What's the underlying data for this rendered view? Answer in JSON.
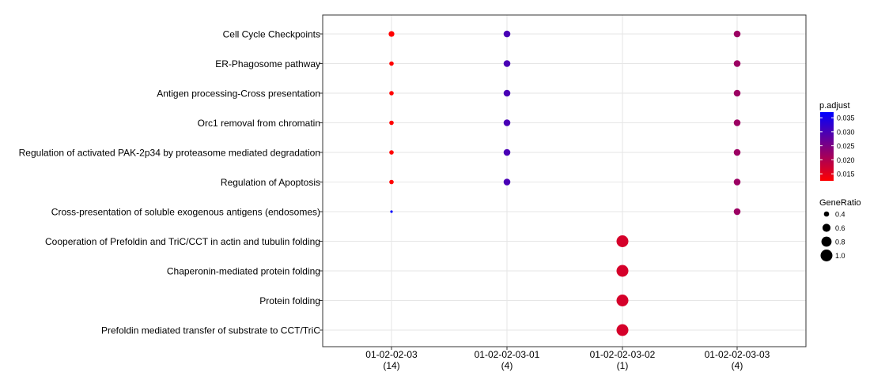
{
  "chart_data": {
    "type": "scatter",
    "title": "",
    "xlabel": "",
    "ylabel": "",
    "grid": true,
    "legend_position": "right",
    "x_categories": [
      [
        "01-02-02-03",
        "(14)"
      ],
      [
        "01-02-02-03-01",
        "(4)"
      ],
      [
        "01-02-02-03-02",
        "(1)"
      ],
      [
        "01-02-02-03-03",
        "(4)"
      ]
    ],
    "y_categories": [
      "Cell Cycle Checkpoints",
      "ER-Phagosome pathway",
      "Antigen processing-Cross presentation",
      "Orc1 removal from chromatin",
      "Regulation of activated PAK-2p34 by proteasome mediated degradation",
      "Regulation of Apoptosis",
      "Cross-presentation of soluble exogenous antigens (endosomes)",
      "Cooperation of Prefoldin and TriC/CCT  in actin and tubulin folding",
      "Chaperonin-mediated protein folding",
      "Protein folding",
      "Prefoldin mediated transfer of substrate  to CCT/TriC"
    ],
    "points": [
      {
        "x": "01-02-02-03",
        "y": "Cell Cycle Checkpoints",
        "gene_ratio": 0.43,
        "p_adjust": 0.0125
      },
      {
        "x": "01-02-02-03",
        "y": "ER-Phagosome pathway",
        "gene_ratio": 0.36,
        "p_adjust": 0.0125
      },
      {
        "x": "01-02-02-03",
        "y": "Antigen processing-Cross presentation",
        "gene_ratio": 0.36,
        "p_adjust": 0.0125
      },
      {
        "x": "01-02-02-03",
        "y": "Orc1 removal from chromatin",
        "gene_ratio": 0.36,
        "p_adjust": 0.0125
      },
      {
        "x": "01-02-02-03",
        "y": "Regulation of activated PAK-2p34 by proteasome mediated degradation",
        "gene_ratio": 0.36,
        "p_adjust": 0.0125
      },
      {
        "x": "01-02-02-03",
        "y": "Regulation of Apoptosis",
        "gene_ratio": 0.36,
        "p_adjust": 0.0125
      },
      {
        "x": "01-02-02-03",
        "y": "Cross-presentation of soluble exogenous antigens (endosomes)",
        "gene_ratio": 0.29,
        "p_adjust": 0.037
      },
      {
        "x": "01-02-02-03-01",
        "y": "Cell Cycle Checkpoints",
        "gene_ratio": 0.5,
        "p_adjust": 0.03
      },
      {
        "x": "01-02-02-03-01",
        "y": "ER-Phagosome pathway",
        "gene_ratio": 0.5,
        "p_adjust": 0.03
      },
      {
        "x": "01-02-02-03-01",
        "y": "Antigen processing-Cross presentation",
        "gene_ratio": 0.5,
        "p_adjust": 0.03
      },
      {
        "x": "01-02-02-03-01",
        "y": "Orc1 removal from chromatin",
        "gene_ratio": 0.5,
        "p_adjust": 0.03
      },
      {
        "x": "01-02-02-03-01",
        "y": "Regulation of activated PAK-2p34 by proteasome mediated degradation",
        "gene_ratio": 0.5,
        "p_adjust": 0.03
      },
      {
        "x": "01-02-02-03-01",
        "y": "Regulation of Apoptosis",
        "gene_ratio": 0.5,
        "p_adjust": 0.03
      },
      {
        "x": "01-02-02-03-02",
        "y": "Cooperation of Prefoldin and TriC/CCT  in actin and tubulin folding",
        "gene_ratio": 1.0,
        "p_adjust": 0.0165
      },
      {
        "x": "01-02-02-03-02",
        "y": "Chaperonin-mediated protein folding",
        "gene_ratio": 1.0,
        "p_adjust": 0.0165
      },
      {
        "x": "01-02-02-03-02",
        "y": "Protein folding",
        "gene_ratio": 1.0,
        "p_adjust": 0.0165
      },
      {
        "x": "01-02-02-03-02",
        "y": "Prefoldin mediated transfer of substrate  to CCT/TriC",
        "gene_ratio": 1.0,
        "p_adjust": 0.0165
      },
      {
        "x": "01-02-02-03-03",
        "y": "Cell Cycle Checkpoints",
        "gene_ratio": 0.5,
        "p_adjust": 0.022
      },
      {
        "x": "01-02-02-03-03",
        "y": "ER-Phagosome pathway",
        "gene_ratio": 0.5,
        "p_adjust": 0.022
      },
      {
        "x": "01-02-02-03-03",
        "y": "Antigen processing-Cross presentation",
        "gene_ratio": 0.5,
        "p_adjust": 0.022
      },
      {
        "x": "01-02-02-03-03",
        "y": "Orc1 removal from chromatin",
        "gene_ratio": 0.5,
        "p_adjust": 0.022
      },
      {
        "x": "01-02-02-03-03",
        "y": "Regulation of activated PAK-2p34 by proteasome mediated degradation",
        "gene_ratio": 0.5,
        "p_adjust": 0.022
      },
      {
        "x": "01-02-02-03-03",
        "y": "Regulation of Apoptosis",
        "gene_ratio": 0.5,
        "p_adjust": 0.022
      },
      {
        "x": "01-02-02-03-03",
        "y": "Cross-presentation of soluble exogenous antigens (endosomes)",
        "gene_ratio": 0.5,
        "p_adjust": 0.022
      }
    ],
    "color_legend": {
      "title": "p.adjust",
      "range": [
        0.0125,
        0.037
      ],
      "ticks": [
        0.015,
        0.02,
        0.025,
        0.03,
        0.035
      ],
      "tick_labels": [
        "0.015",
        "0.020",
        "0.025",
        "0.030",
        "0.035"
      ],
      "low_color": "#ff0000",
      "high_color": "#0000ff"
    },
    "size_legend": {
      "title": "GeneRatio",
      "range": [
        0.29,
        1.0
      ],
      "values": [
        0.4,
        0.6,
        0.8,
        1.0
      ],
      "labels": [
        "0.4",
        "0.6",
        "0.8",
        "1.0"
      ]
    }
  }
}
